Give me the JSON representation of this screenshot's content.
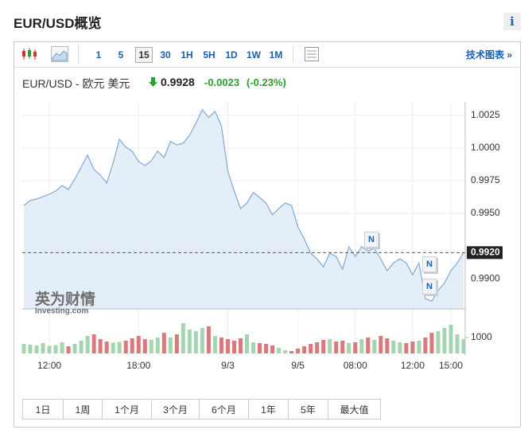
{
  "header": {
    "title": "EUR/USD概览",
    "info": "i"
  },
  "toolbar": {
    "intervals": [
      "1",
      "5",
      "15",
      "30",
      "1H",
      "5H",
      "1D",
      "1W",
      "1M"
    ],
    "technical_link": "技术图表 »"
  },
  "quote": {
    "name": "EUR/USD - 欧元 美元",
    "price": 0.9928,
    "change": -0.0023,
    "change_pct": "(-0.23%)"
  },
  "chart_data": [
    {
      "type": "line",
      "categories": [
        null,
        null,
        null,
        null,
        "12:00",
        null,
        null,
        null,
        null,
        null,
        null,
        null,
        null,
        null,
        null,
        null,
        null,
        null,
        "18:00",
        null,
        null,
        null,
        null,
        null,
        null,
        null,
        null,
        null,
        null,
        null,
        null,
        null,
        "9/3",
        null,
        null,
        null,
        null,
        null,
        null,
        null,
        null,
        null,
        null,
        "9/5",
        null,
        null,
        null,
        null,
        null,
        null,
        null,
        null,
        "08:00",
        null,
        null,
        null,
        null,
        null,
        null,
        null,
        null,
        "12:00",
        null,
        null,
        null,
        null,
        null,
        "15:00",
        null,
        null
      ],
      "values": [
        0.99561,
        0.99598,
        0.9961,
        0.99628,
        0.99646,
        0.99671,
        0.99713,
        0.99683,
        0.99762,
        0.99854,
        0.99945,
        0.99835,
        0.99793,
        0.99732,
        0.99884,
        1.00067,
        1.00006,
        0.99976,
        0.99896,
        0.99866,
        0.99902,
        0.99976,
        0.99927,
        1.00049,
        1.00024,
        1.00037,
        1.00098,
        1.00189,
        1.00293,
        1.00232,
        1.0028,
        1.00171,
        0.99823,
        0.99671,
        0.99537,
        0.99579,
        0.99659,
        0.99622,
        0.99579,
        0.99488,
        0.99537,
        0.99579,
        0.99561,
        0.99396,
        0.99305,
        0.99195,
        0.99152,
        0.99091,
        0.99195,
        0.99171,
        0.99073,
        0.99244,
        0.99171,
        0.99244,
        0.99213,
        0.99232,
        0.99152,
        0.99061,
        0.99122,
        0.99152,
        0.99122,
        0.9903,
        0.99122,
        0.98847,
        0.98829,
        0.98908,
        0.98969,
        0.99061,
        0.99122,
        0.992
      ],
      "color": "#7fa9d6",
      "fill": "#e4eef8",
      "ylim": [
        0.9877,
        1.0034
      ],
      "yticks": [
        1.0025,
        {
          "value": 1.0,
          "label": "1.0000"
        },
        0.9975,
        {
          "value": 0.995,
          "label": "0.9950"
        },
        {
          "value": 0.99,
          "label": "0.9900"
        }
      ],
      "current_price": {
        "value": 0.992,
        "label": "0.9920"
      },
      "grid": true
    },
    {
      "type": "bar",
      "values": [
        600,
        550,
        500,
        650,
        480,
        520,
        700,
        450,
        600,
        800,
        1100,
        1200,
        900,
        750,
        680,
        720,
        800,
        950,
        1100,
        900,
        850,
        1000,
        1300,
        1000,
        1200,
        1900,
        1500,
        1400,
        1600,
        1700,
        1100,
        1000,
        900,
        800,
        950,
        1200,
        700,
        650,
        600,
        500,
        350,
        200,
        150,
        300,
        450,
        600,
        700,
        850,
        900,
        750,
        800,
        650,
        700,
        900,
        1000,
        850,
        1100,
        950,
        800,
        700,
        650,
        750,
        800,
        1000,
        1300,
        1400,
        1600,
        1800,
        1200,
        900
      ],
      "up_color": "#a6d4b0",
      "down_color": "#d67a7a",
      "ylim": [
        0,
        2200
      ],
      "yticks": [
        1000
      ]
    }
  ],
  "news_marker": "N",
  "watermark": {
    "cn": "英为财情",
    "en": "Investing.com"
  },
  "range_buttons": [
    "1日",
    "1周",
    "1个月",
    "3个月",
    "6个月",
    "1年",
    "5年",
    "最大值"
  ]
}
